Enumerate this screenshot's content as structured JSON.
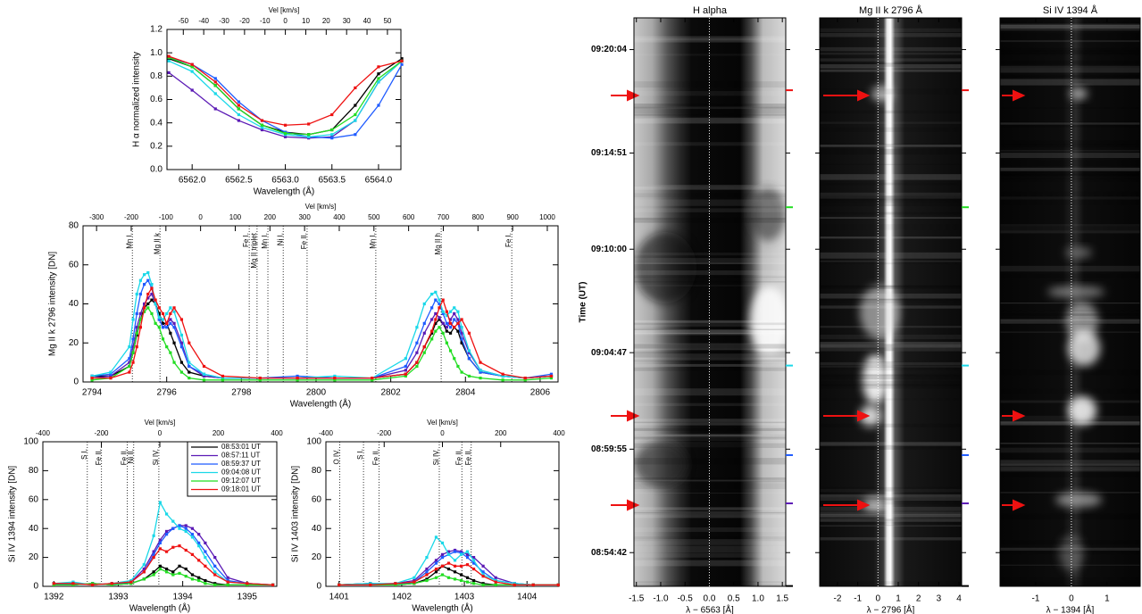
{
  "chart_data": [
    {
      "type": "line",
      "ylabel": "H α normalized intensity",
      "xlabel": "Wavelength (Å)",
      "x2label": "Vel [km/s]",
      "xlim": [
        6561.73,
        6564.24
      ],
      "xticks": [
        {
          "value": 6562,
          "label": "6562.0"
        },
        6562.5,
        {
          "value": 6563,
          "label": "6563.0"
        },
        6563.5,
        {
          "value": 6564,
          "label": "6564.0"
        }
      ],
      "x2lim": [
        -58,
        56.6
      ],
      "x2ticks": [
        -50,
        -40,
        -30,
        -20,
        -10,
        0,
        10,
        20,
        30,
        40,
        50
      ],
      "ylim": [
        0,
        1.2
      ],
      "yticks": [
        {
          "value": 0,
          "label": "0.0"
        },
        0.2,
        0.4,
        0.6,
        0.8,
        {
          "value": 1,
          "label": "1.0"
        },
        1.2
      ],
      "x": [
        6561.75,
        6562.0,
        6562.25,
        6562.5,
        6562.75,
        6563.0,
        6563.25,
        6563.5,
        6563.75,
        6564.0,
        6564.25
      ],
      "series": [
        {
          "color": "#000000",
          "values": [
            0.95,
            0.88,
            0.72,
            0.52,
            0.38,
            0.32,
            0.3,
            0.34,
            0.55,
            0.82,
            0.95
          ]
        },
        {
          "color": "#5b1ab5",
          "values": [
            0.83,
            0.68,
            0.52,
            0.42,
            0.34,
            0.28,
            0.27,
            0.28,
            0.42,
            0.75,
            0.93
          ]
        },
        {
          "color": "#1f5bff",
          "values": [
            0.96,
            0.9,
            0.78,
            0.58,
            0.42,
            0.32,
            0.28,
            0.27,
            0.3,
            0.55,
            0.9
          ]
        },
        {
          "color": "#1ad8e8",
          "values": [
            0.93,
            0.84,
            0.65,
            0.47,
            0.36,
            0.3,
            0.28,
            0.3,
            0.42,
            0.75,
            0.93
          ]
        },
        {
          "color": "#22dd22",
          "values": [
            0.96,
            0.88,
            0.72,
            0.52,
            0.38,
            0.31,
            0.3,
            0.34,
            0.47,
            0.78,
            0.93
          ]
        },
        {
          "color": "#ee1111",
          "values": [
            0.97,
            0.9,
            0.75,
            0.55,
            0.42,
            0.38,
            0.39,
            0.47,
            0.7,
            0.88,
            0.93
          ]
        }
      ]
    },
    {
      "type": "line",
      "ylabel": "Mg II k 2796 intensity [DN]",
      "xlabel": "Wavelength (Å)",
      "x2label": "Vel [km/s]",
      "xlim": [
        2793.76,
        2806.48
      ],
      "xticks": [
        2794,
        2796,
        2798,
        2800,
        2802,
        2804,
        2806
      ],
      "x2lim": [
        -339,
        1031
      ],
      "x2ticks": [
        -300,
        -200,
        -100,
        0,
        100,
        200,
        300,
        400,
        500,
        600,
        700,
        800,
        900,
        1000
      ],
      "ylim": [
        0,
        80
      ],
      "yticks": [
        0,
        20,
        40,
        60,
        80
      ],
      "lines": [
        {
          "label": "Mn I.",
          "x": 2795.08
        },
        {
          "label": "Mg II k",
          "x": 2795.82
        },
        {
          "label": "Fe I.",
          "x": 2798.21
        },
        {
          "label": "Mg II triplet",
          "x": 2798.42
        },
        {
          "label": "Mn I.",
          "x": 2798.71
        },
        {
          "label": "Ni I.",
          "x": 2799.12
        },
        {
          "label": "Fe II.",
          "x": 2799.76
        },
        {
          "label": "Mn I.",
          "x": 2801.6
        },
        {
          "label": "Mg II h",
          "x": 2803.35
        },
        {
          "label": "Fe I.",
          "x": 2805.24
        }
      ],
      "x": [
        2794.0,
        2794.5,
        2795.0,
        2795.1,
        2795.2,
        2795.3,
        2795.4,
        2795.5,
        2795.6,
        2795.7,
        2795.8,
        2795.9,
        2796.0,
        2796.1,
        2796.2,
        2796.4,
        2796.6,
        2797.0,
        2797.5,
        2798.5,
        2799.5,
        2800.5,
        2801.5,
        2802.4,
        2802.7,
        2802.9,
        2803.1,
        2803.2,
        2803.3,
        2803.4,
        2803.5,
        2803.6,
        2803.7,
        2803.8,
        2803.9,
        2804.1,
        2804.4,
        2805.0,
        2805.6,
        2806.3
      ],
      "series": [
        {
          "color": "#000000",
          "values": [
            3,
            3,
            8,
            15,
            24,
            32,
            38,
            40,
            42,
            40,
            35,
            30,
            30,
            25,
            20,
            10,
            5,
            3,
            2,
            2,
            2,
            2,
            2,
            4,
            10,
            18,
            25,
            30,
            32,
            30,
            26,
            25,
            28,
            26,
            20,
            12,
            5,
            3,
            2,
            3
          ]
        },
        {
          "color": "#5b1ab5",
          "values": [
            2,
            3,
            10,
            18,
            28,
            35,
            40,
            43,
            45,
            40,
            32,
            28,
            30,
            32,
            30,
            20,
            8,
            3,
            2,
            2,
            2,
            2,
            2,
            6,
            15,
            25,
            32,
            35,
            33,
            30,
            28,
            32,
            35,
            32,
            25,
            15,
            6,
            3,
            2,
            3
          ]
        },
        {
          "color": "#1f5bff",
          "values": [
            3,
            4,
            12,
            22,
            35,
            45,
            50,
            52,
            48,
            40,
            32,
            28,
            28,
            30,
            28,
            18,
            8,
            4,
            2,
            2,
            3,
            2,
            2,
            8,
            20,
            30,
            38,
            42,
            40,
            35,
            30,
            28,
            32,
            30,
            22,
            12,
            5,
            3,
            2,
            4
          ]
        },
        {
          "color": "#1ad8e8",
          "values": [
            3,
            5,
            18,
            32,
            45,
            52,
            55,
            56,
            50,
            40,
            33,
            32,
            35,
            38,
            36,
            24,
            10,
            4,
            2,
            2,
            2,
            3,
            2,
            12,
            28,
            40,
            45,
            46,
            42,
            36,
            34,
            36,
            38,
            36,
            28,
            16,
            6,
            3,
            2,
            3
          ]
        },
        {
          "color": "#22dd22",
          "values": [
            1,
            2,
            8,
            15,
            25,
            32,
            36,
            38,
            35,
            30,
            28,
            22,
            18,
            15,
            10,
            5,
            2,
            1,
            1,
            1,
            1,
            1,
            1,
            3,
            8,
            15,
            22,
            26,
            28,
            25,
            20,
            16,
            12,
            8,
            5,
            3,
            2,
            1,
            1,
            2
          ]
        },
        {
          "color": "#ee1111",
          "values": [
            2,
            2,
            5,
            10,
            18,
            28,
            38,
            45,
            48,
            42,
            38,
            35,
            30,
            35,
            38,
            32,
            20,
            8,
            3,
            2,
            2,
            2,
            2,
            4,
            10,
            18,
            26,
            32,
            38,
            42,
            36,
            30,
            28,
            30,
            32,
            25,
            10,
            4,
            2,
            3
          ]
        }
      ]
    },
    {
      "type": "line",
      "ylabel": "Si IV 1394 intensity [DN]",
      "xlabel": "Wavelength (Å)",
      "x2label": "Vel [km/s]",
      "xlim": [
        1391.83,
        1395.46
      ],
      "xticks": [
        1392,
        1393,
        1394,
        1395
      ],
      "x2lim": [
        -400,
        400
      ],
      "x2ticks": [
        -400,
        -200,
        0,
        200,
        400
      ],
      "ylim": [
        0,
        100
      ],
      "yticks": [
        0,
        20,
        40,
        60,
        80,
        100
      ],
      "lines": [
        {
          "label": "S I.",
          "x": 1392.52
        },
        {
          "label": "Fe II.",
          "x": 1392.74
        },
        {
          "label": "Fe II.",
          "x": 1393.14
        },
        {
          "label": "Ni II.",
          "x": 1393.24
        },
        {
          "label": "Si IV.",
          "x": 1393.63
        }
      ],
      "x": [
        1392.0,
        1392.3,
        1392.6,
        1392.9,
        1393.2,
        1393.4,
        1393.55,
        1393.65,
        1393.75,
        1393.85,
        1393.95,
        1394.05,
        1394.15,
        1394.25,
        1394.35,
        1394.5,
        1394.7,
        1395.0,
        1395.4
      ],
      "series": [
        {
          "name": "08:53:01 UT",
          "color": "#000000",
          "values": [
            2,
            1,
            2,
            1,
            2,
            5,
            10,
            14,
            12,
            10,
            14,
            12,
            8,
            6,
            4,
            2,
            1,
            1,
            1
          ]
        },
        {
          "name": "08:57:11 UT",
          "color": "#5b1ab5",
          "values": [
            1,
            2,
            1,
            2,
            3,
            12,
            24,
            32,
            38,
            40,
            42,
            42,
            40,
            36,
            30,
            20,
            6,
            2,
            1
          ]
        },
        {
          "name": "08:59:37 UT",
          "color": "#1f5bff",
          "values": [
            2,
            1,
            2,
            1,
            3,
            10,
            22,
            30,
            36,
            40,
            42,
            40,
            36,
            30,
            24,
            14,
            4,
            2,
            1
          ]
        },
        {
          "name": "09:04:08 UT",
          "color": "#1ad8e8",
          "values": [
            2,
            3,
            1,
            2,
            4,
            15,
            35,
            58,
            50,
            45,
            40,
            38,
            34,
            28,
            20,
            10,
            3,
            2,
            1
          ]
        },
        {
          "name": "09:12:07 UT",
          "color": "#22dd22",
          "values": [
            1,
            1,
            2,
            1,
            2,
            5,
            8,
            12,
            10,
            8,
            9,
            7,
            5,
            4,
            2,
            1,
            1,
            1,
            1
          ]
        },
        {
          "name": "09:18:01 UT",
          "color": "#ee1111",
          "values": [
            2,
            2,
            1,
            2,
            3,
            10,
            20,
            26,
            24,
            27,
            28,
            25,
            22,
            18,
            14,
            8,
            3,
            2,
            1
          ]
        }
      ]
    },
    {
      "type": "line",
      "ylabel": "Si IV 1403 intensity [DN]",
      "xlabel": "Wavelength (Å)",
      "x2label": "Vel [km/s]",
      "xlim": [
        1400.79,
        1404.51
      ],
      "xticks": [
        1401,
        1402,
        1403,
        1404
      ],
      "x2lim": [
        -400,
        400
      ],
      "x2ticks": [
        -400,
        -200,
        0,
        200,
        400
      ],
      "ylim": [
        0,
        100
      ],
      "yticks": [
        0,
        20,
        40,
        60,
        80,
        100
      ],
      "lines": [
        {
          "label": "O IV.",
          "x": 1401.01
        },
        {
          "label": "S I.",
          "x": 1401.39
        },
        {
          "label": "Fe II.",
          "x": 1401.64
        },
        {
          "label": "Si IV.",
          "x": 1402.6
        },
        {
          "label": "Fe II.",
          "x": 1402.96
        },
        {
          "label": "Fe II.",
          "x": 1403.11
        }
      ],
      "x": [
        1401.0,
        1401.5,
        1401.9,
        1402.2,
        1402.4,
        1402.55,
        1402.65,
        1402.75,
        1402.85,
        1402.95,
        1403.05,
        1403.15,
        1403.3,
        1403.5,
        1403.8,
        1404.1,
        1404.5
      ],
      "series": [
        {
          "color": "#000000",
          "values": [
            1,
            2,
            1,
            2,
            5,
            10,
            14,
            12,
            10,
            8,
            6,
            4,
            2,
            1,
            1,
            1,
            1
          ]
        },
        {
          "color": "#5b1ab5",
          "values": [
            1,
            1,
            2,
            4,
            12,
            18,
            22,
            24,
            25,
            24,
            22,
            20,
            14,
            6,
            2,
            1,
            1
          ]
        },
        {
          "color": "#1f5bff",
          "values": [
            1,
            2,
            1,
            3,
            10,
            16,
            20,
            22,
            24,
            23,
            20,
            16,
            10,
            4,
            2,
            1,
            1
          ]
        },
        {
          "color": "#1ad8e8",
          "values": [
            1,
            2,
            2,
            6,
            20,
            34,
            30,
            22,
            18,
            22,
            24,
            18,
            8,
            4,
            2,
            1,
            1
          ]
        },
        {
          "color": "#22dd22",
          "values": [
            1,
            1,
            1,
            2,
            4,
            6,
            8,
            6,
            5,
            4,
            3,
            2,
            1,
            1,
            1,
            1,
            1
          ]
        },
        {
          "color": "#ee1111",
          "values": [
            1,
            1,
            2,
            3,
            8,
            12,
            14,
            16,
            14,
            14,
            15,
            12,
            7,
            3,
            1,
            1,
            1
          ]
        }
      ]
    },
    {
      "type": "spectrogram",
      "title": "H alpha",
      "xlabel": "λ − 6563 [Å]",
      "xlim": [
        -1.55,
        1.57
      ],
      "xticks": [
        -1.5,
        {
          "value": -1,
          "label": "-1.0"
        },
        -0.5,
        {
          "value": 0,
          "label": "0.0"
        },
        0.5,
        {
          "value": 1,
          "label": "1.0"
        },
        1.5
      ],
      "ylabel": "Time (UT)",
      "ylim": [
        "09:21:40",
        "08:53:00"
      ],
      "yticks": [
        "09:20:04",
        "09:14:51",
        "09:10:00",
        "09:04:47",
        "08:59:55",
        "08:54:42"
      ]
    },
    {
      "type": "spectrogram",
      "title": "Mg II k 2796 Å",
      "xlabel": "λ − 2796 [Å]",
      "xlim": [
        -2.88,
        4.13
      ],
      "xticks": [
        -2,
        -1,
        0,
        1,
        2,
        3,
        4
      ],
      "ylim": [
        "09:21:40",
        "08:53:00"
      ]
    },
    {
      "type": "spectrogram",
      "title": "Si IV 1394 Å",
      "xlabel": "λ − 1394 [Å]",
      "xlim": [
        -2,
        1.93
      ],
      "xticks": [
        -1,
        0,
        1
      ],
      "ylim": [
        "09:21:40",
        "08:53:00"
      ]
    }
  ]
}
